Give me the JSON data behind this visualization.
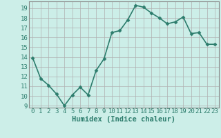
{
  "x": [
    0,
    1,
    2,
    3,
    4,
    5,
    6,
    7,
    8,
    9,
    10,
    11,
    12,
    13,
    14,
    15,
    16,
    17,
    18,
    19,
    20,
    21,
    22,
    23
  ],
  "y": [
    13.9,
    11.8,
    11.1,
    10.2,
    9.0,
    10.1,
    10.9,
    10.1,
    12.6,
    13.8,
    16.5,
    16.7,
    17.8,
    19.3,
    19.1,
    18.5,
    18.0,
    17.4,
    17.6,
    18.1,
    16.4,
    16.5,
    15.3,
    15.3
  ],
  "line_color": "#2d7d6d",
  "marker": "D",
  "marker_size": 2.5,
  "bg_color": "#cceee8",
  "grid_major_color": "#b0b0b0",
  "grid_minor_color": "#d0d0d0",
  "xlabel": "Humidex (Indice chaleur)",
  "xlim": [
    -0.5,
    23.5
  ],
  "ylim": [
    8.8,
    19.7
  ],
  "yticks": [
    9,
    10,
    11,
    12,
    13,
    14,
    15,
    16,
    17,
    18,
    19
  ],
  "xticks": [
    0,
    1,
    2,
    3,
    4,
    5,
    6,
    7,
    8,
    9,
    10,
    11,
    12,
    13,
    14,
    15,
    16,
    17,
    18,
    19,
    20,
    21,
    22,
    23
  ],
  "xlabel_fontsize": 7.5,
  "tick_fontsize": 6.5,
  "linewidth": 1.2,
  "spine_color": "#888888"
}
